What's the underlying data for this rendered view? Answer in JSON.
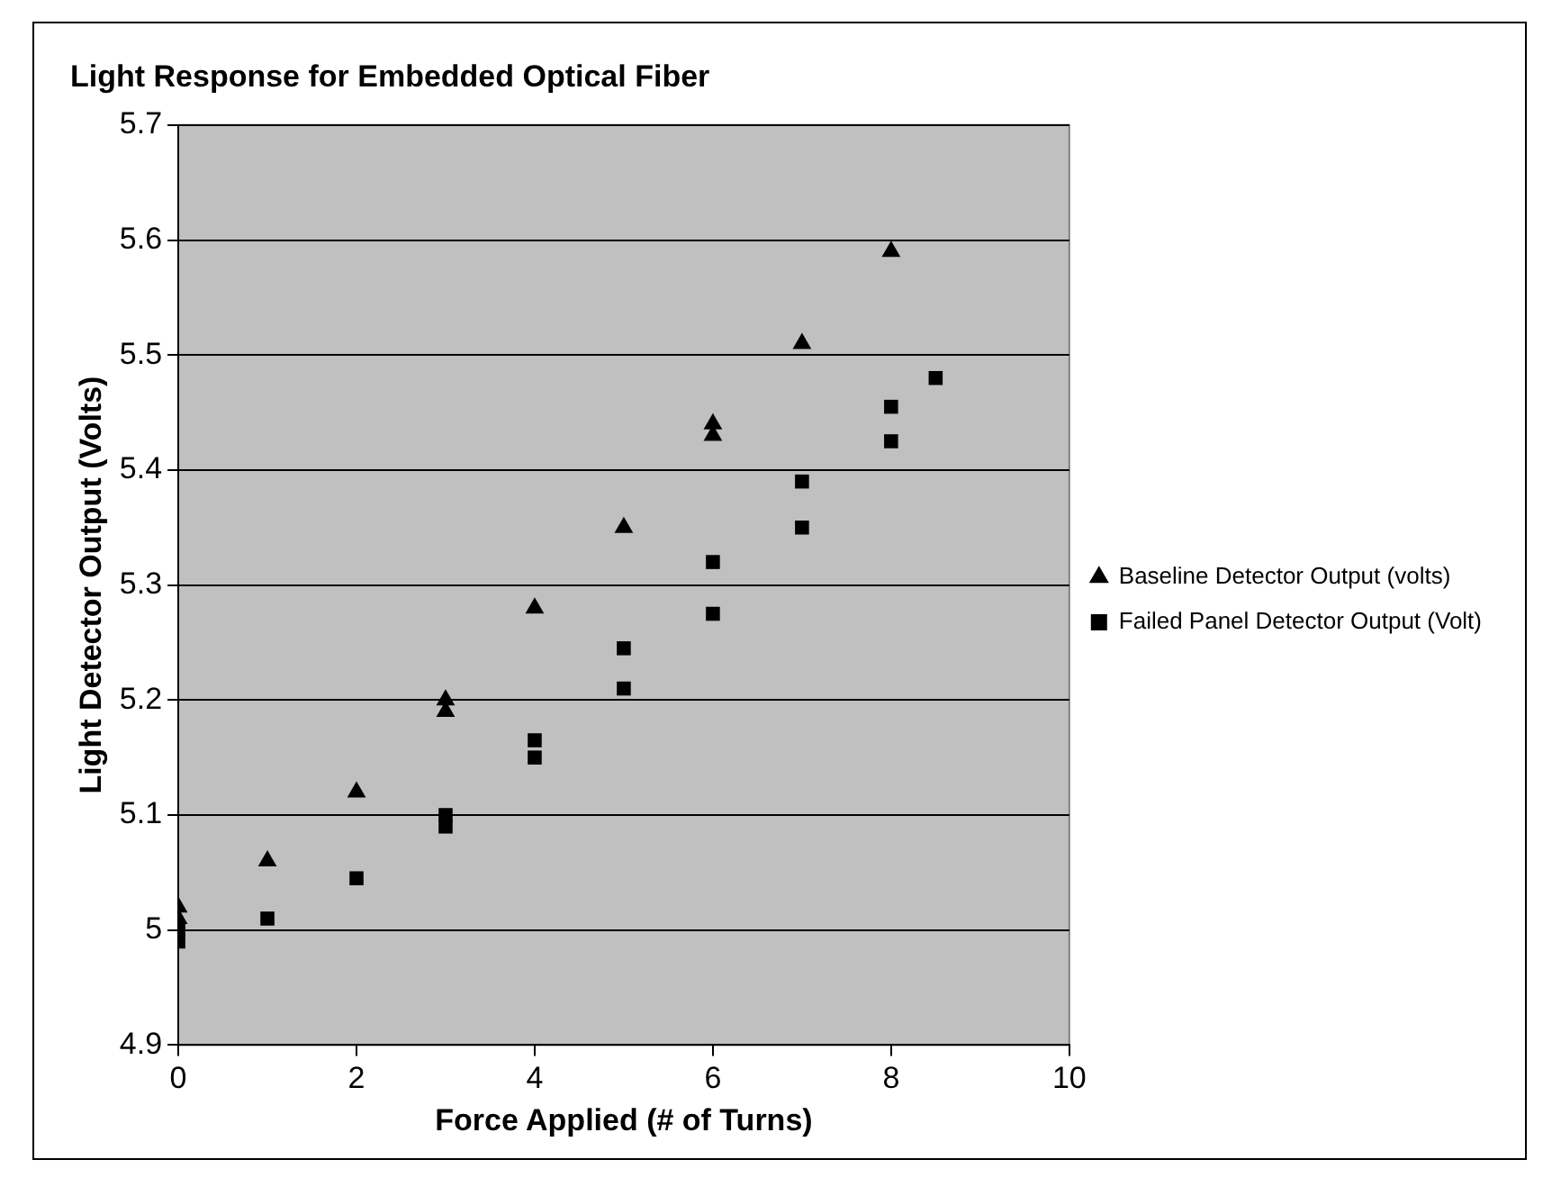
{
  "chart_data": {
    "type": "scatter",
    "title": "Light Response for Embedded Optical Fiber",
    "xlabel": "Force Applied (# of Turns)",
    "ylabel": "Light Detector Output (Volts)",
    "series": [
      {
        "name": "Baseline Detector Output (volts)",
        "color": "#000000",
        "marker": "triangle",
        "x": [
          0,
          0,
          1,
          2,
          3,
          3,
          4,
          5,
          6,
          6,
          7,
          8
        ],
        "values": [
          5.01,
          5.02,
          5.06,
          5.12,
          5.19,
          5.2,
          5.28,
          5.35,
          5.43,
          5.44,
          5.51,
          5.59
        ]
      },
      {
        "name": "Failed Panel Detector Output (Volt)",
        "color": "#000000",
        "marker": "square",
        "x": [
          0,
          0,
          1,
          2,
          3,
          3,
          4,
          4,
          5,
          5,
          6,
          6,
          7,
          7,
          8,
          8,
          8.5
        ],
        "values": [
          4.99,
          5.0,
          5.01,
          5.045,
          5.09,
          5.1,
          5.15,
          5.165,
          5.21,
          5.245,
          5.275,
          5.32,
          5.35,
          5.39,
          5.425,
          5.455,
          5.48
        ]
      }
    ],
    "xlim": [
      0,
      10
    ],
    "xticks": [
      0,
      2,
      4,
      6,
      8,
      10
    ],
    "ylim": [
      4.9,
      5.7
    ],
    "yticks": [
      4.9,
      5,
      5.1,
      5.2,
      5.3,
      5.4,
      5.5,
      5.6,
      5.7
    ],
    "grid": "y",
    "legend": "right"
  }
}
